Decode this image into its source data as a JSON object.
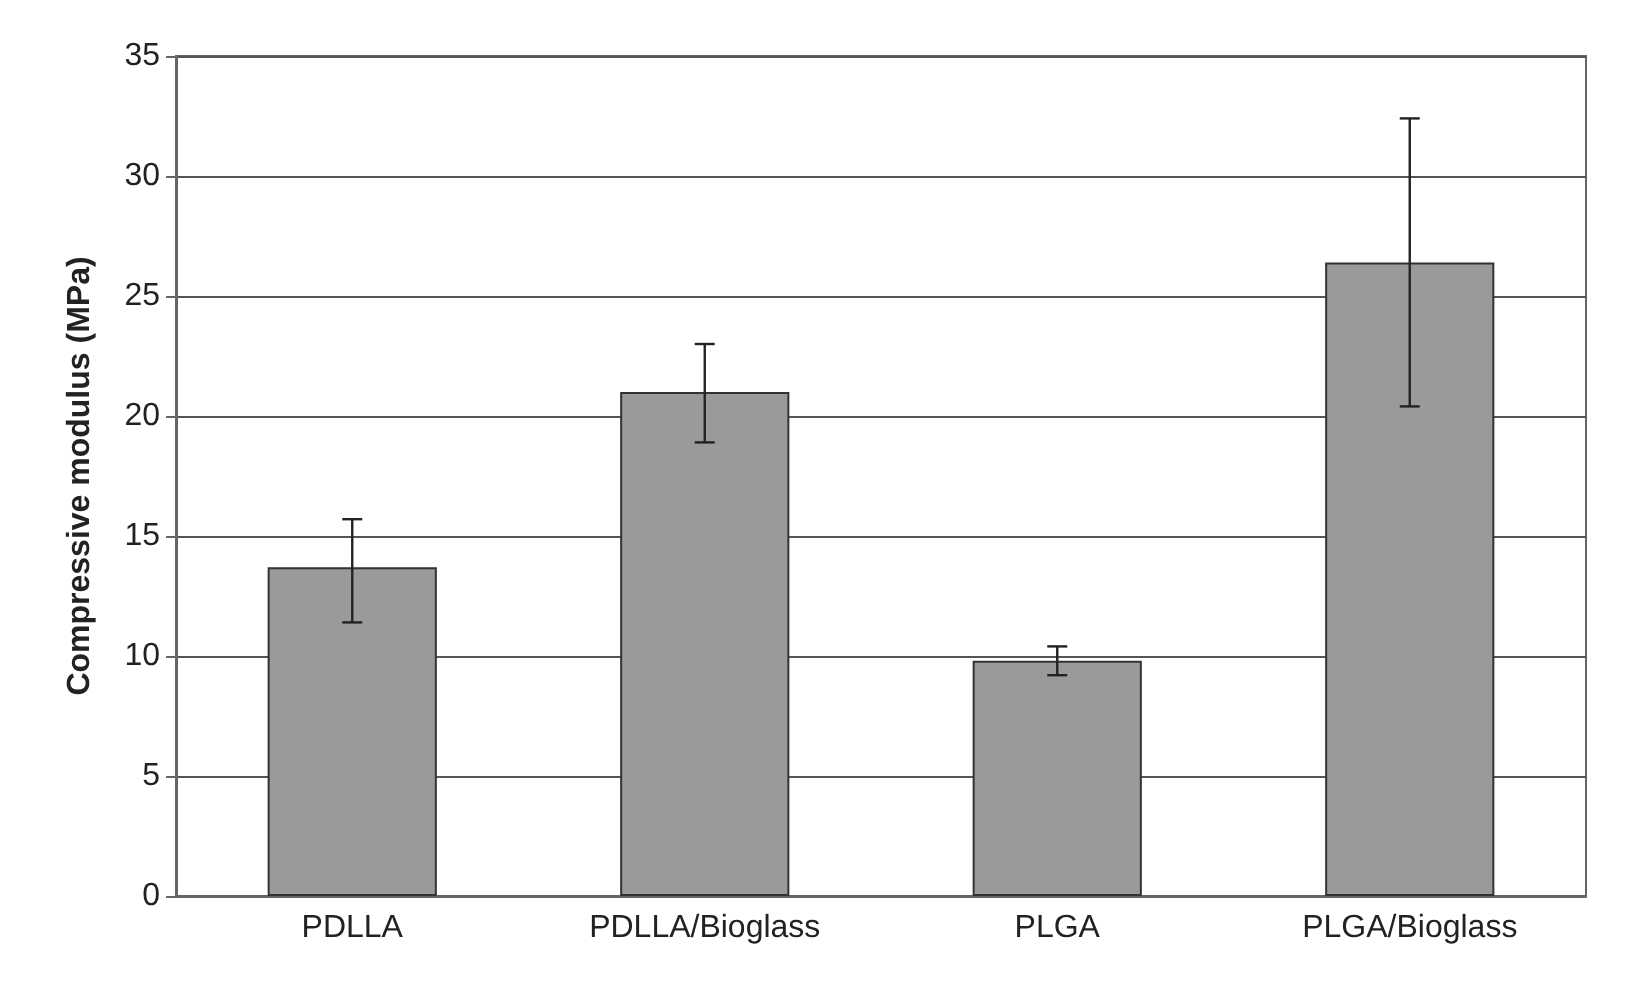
{
  "chart_data": {
    "type": "bar",
    "ylabel": "Compressive modulus (MPa)",
    "categories": [
      "PDLLA",
      "PDLLA/Bioglass",
      "PLGA",
      "PLGA/Bioglass"
    ],
    "values": [
      13.7,
      21,
      9.8,
      26.4
    ],
    "color": "#9a9a9a",
    "errors": [
      [
        11.4,
        15.7
      ],
      [
        18.9,
        23.0
      ],
      [
        9.2,
        10.4
      ],
      [
        20.4,
        32.4
      ]
    ],
    "ylim": [
      0,
      35
    ],
    "yticks": [
      0,
      5,
      10,
      15,
      20,
      25,
      30,
      35
    ],
    "grid": "y"
  }
}
